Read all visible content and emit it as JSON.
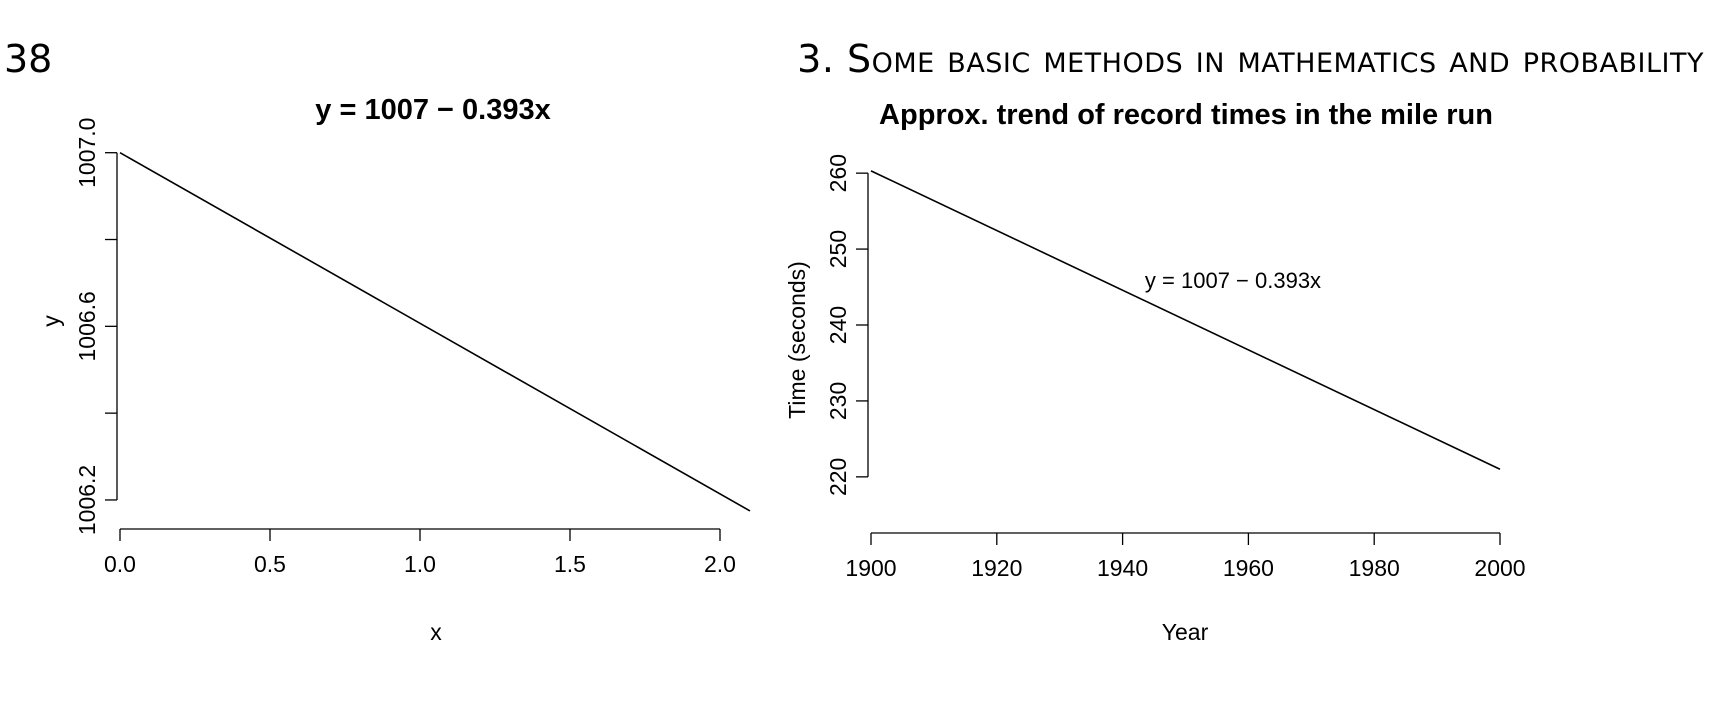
{
  "page": {
    "number": "38",
    "running_head": "3. Some basic methods in mathematics and probability"
  },
  "chart_data": [
    {
      "type": "line",
      "title": "y = 1007 − 0.393x",
      "xlabel": "x",
      "ylabel": "y",
      "xlim": [
        0,
        2.1
      ],
      "ylim": [
        1006.14,
        1007.05
      ],
      "x_ticks": [
        0.0,
        0.5,
        1.0,
        1.5,
        2.0
      ],
      "x_tick_labels": [
        "0.0",
        "0.5",
        "1.0",
        "1.5",
        "2.0"
      ],
      "y_ticks": [
        1006.2,
        1006.4,
        1006.6,
        1006.8,
        1007.0
      ],
      "y_tick_labels": [
        "1006.2",
        "",
        "1006.6",
        "",
        "1007.0"
      ],
      "grid": false,
      "legend": "none",
      "series": [
        {
          "x": [
            0,
            2.1
          ],
          "y": [
            1007.0,
            1006.1747
          ]
        }
      ]
    },
    {
      "type": "line",
      "title": "Approx. trend of record times in the mile run",
      "xlabel": "Year",
      "ylabel": "Time (seconds)",
      "xlim": [
        1900,
        2000
      ],
      "ylim": [
        213,
        267
      ],
      "x_ticks": [
        1900,
        1920,
        1940,
        1960,
        1980,
        2000
      ],
      "x_tick_labels": [
        "1900",
        "1920",
        "1940",
        "1960",
        "1980",
        "2000"
      ],
      "y_ticks": [
        220,
        230,
        240,
        250,
        260
      ],
      "y_tick_labels": [
        "220",
        "230",
        "240",
        "250",
        "260"
      ],
      "grid": false,
      "legend": "none",
      "annotation": {
        "text": "y = 1007 − 0.393x",
        "x": 1958,
        "y": 246
      },
      "series": [
        {
          "x": [
            1900,
            2000
          ],
          "y": [
            260.3,
            221.0
          ]
        }
      ]
    }
  ]
}
